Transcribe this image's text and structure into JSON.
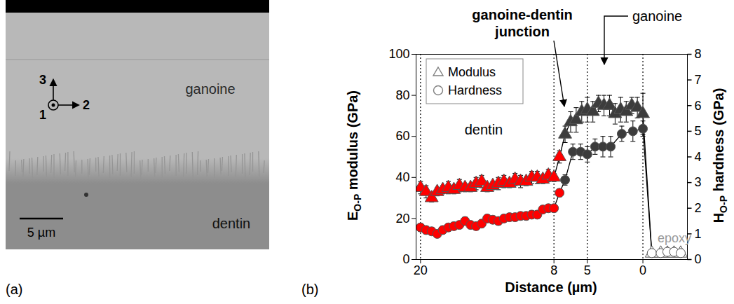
{
  "panel_a": {
    "letter": "(a)",
    "labels": [
      "ganoine",
      "dentin"
    ],
    "scale_bar": "5 µm",
    "axes": [
      "1",
      "2",
      "3"
    ]
  },
  "chart_data": {
    "letter": "(b)",
    "type": "scatter",
    "xlabel": "Distance (µm)",
    "ylabel": {
      "text": "E",
      "subscript": "O-P",
      "rest": " modulus (GPa)"
    },
    "y2label": {
      "text": "H",
      "subscript": "O-P",
      "rest": " hardness (GPa)"
    },
    "xlim": [
      20.4,
      -4
    ],
    "xticks": [
      20,
      8,
      5,
      0
    ],
    "ylim": [
      0,
      100
    ],
    "yticks": [
      0,
      20,
      40,
      60,
      80,
      100
    ],
    "y2lim": [
      0,
      8
    ],
    "y2ticks": [
      0,
      1,
      2,
      3,
      4,
      5,
      6,
      7,
      8
    ],
    "grid": "x",
    "legend": "top-left",
    "annotations": [
      "ganoine-dentin junction",
      "ganoine",
      "dentin",
      "epoxy"
    ],
    "series": [
      {
        "name": "Modulus",
        "marker": "triangle",
        "line_style": "solid",
        "x": [
          20,
          19.5,
          19,
          18.5,
          18,
          17.5,
          17,
          16.5,
          16,
          15.5,
          15,
          14.5,
          14,
          13.5,
          13,
          12.5,
          12,
          11.5,
          11,
          10.5,
          10,
          9.5,
          9,
          8.5,
          8,
          7.5,
          7,
          6.5,
          6,
          5.5,
          5,
          4.5,
          4,
          3.5,
          3,
          2.5,
          2,
          1.5,
          1,
          0.5,
          0,
          -0.8,
          -1.6,
          -2.2,
          -2.8,
          -3.4
        ],
        "values": [
          35,
          33,
          30,
          33,
          34,
          35,
          34,
          36,
          35,
          35,
          37,
          38,
          35,
          36,
          37,
          38,
          37,
          39,
          38,
          38,
          40,
          40,
          39,
          41,
          40,
          50,
          61,
          67,
          68,
          72,
          73,
          72,
          76,
          75,
          75,
          71,
          73,
          72,
          75,
          74,
          71,
          3,
          3,
          3,
          3,
          3
        ],
        "errors": [
          3,
          3,
          2,
          2,
          2,
          3,
          2,
          3,
          2,
          2,
          3,
          3,
          2,
          2,
          3,
          3,
          2,
          3,
          3,
          2,
          3,
          3,
          2,
          3,
          2,
          3,
          4,
          5,
          6,
          5,
          6,
          5,
          4,
          5,
          5,
          5,
          6,
          5,
          4,
          5,
          10,
          0.5,
          0.5,
          0.5,
          0.5,
          0.5
        ],
        "colors": [
          "#ff0000",
          "#ff0000",
          "#ff0000",
          "#ff0000",
          "#ff0000",
          "#ff0000",
          "#ff0000",
          "#ff0000",
          "#ff0000",
          "#ff0000",
          "#ff0000",
          "#ff0000",
          "#ff0000",
          "#ff0000",
          "#ff0000",
          "#ff0000",
          "#ff0000",
          "#ff0000",
          "#ff0000",
          "#ff0000",
          "#ff0000",
          "#ff0000",
          "#ff0000",
          "#ff0000",
          "#ff0000",
          "#ff0000",
          "#3c3c3c",
          "#3c3c3c",
          "#3c3c3c",
          "#3c3c3c",
          "#3c3c3c",
          "#3c3c3c",
          "#3c3c3c",
          "#3c3c3c",
          "#3c3c3c",
          "#3c3c3c",
          "#3c3c3c",
          "#3c3c3c",
          "#3c3c3c",
          "#3c3c3c",
          "#3c3c3c",
          "#ffffff",
          "#ffffff",
          "#ffffff",
          "#ffffff",
          "#ffffff"
        ]
      },
      {
        "name": "Hardness",
        "marker": "circle",
        "line_style": "solid",
        "axis": "y2",
        "x": [
          20,
          19.5,
          19,
          18.5,
          18,
          17.5,
          17,
          16.5,
          16,
          15.5,
          15,
          14.5,
          14,
          13.5,
          13,
          12.5,
          12,
          11.5,
          11,
          10.5,
          10,
          9.5,
          9,
          8.5,
          8,
          7.5,
          7,
          6.3,
          5.6,
          5,
          4.3,
          3.6,
          2.9,
          1.9,
          0.9,
          0,
          -0.8,
          -1.6,
          -2.2,
          -2.8,
          -3.4
        ],
        "values": [
          1.25,
          1.15,
          1.1,
          1.0,
          1.15,
          1.25,
          1.3,
          1.35,
          1.5,
          1.35,
          1.3,
          1.4,
          1.6,
          1.55,
          1.5,
          1.6,
          1.65,
          1.65,
          1.7,
          1.7,
          1.75,
          1.75,
          1.95,
          2.0,
          2.0,
          2.6,
          3.1,
          4.2,
          4.2,
          4.1,
          4.4,
          4.4,
          4.4,
          4.9,
          5.0,
          5.1,
          0.25,
          0.25,
          0.3,
          0.3,
          0.25
        ],
        "errors": [
          0.15,
          0.15,
          0.15,
          0.15,
          0.15,
          0.15,
          0.15,
          0.15,
          0.15,
          0.15,
          0.15,
          0.15,
          0.15,
          0.15,
          0.15,
          0.15,
          0.15,
          0.15,
          0.15,
          0.15,
          0.15,
          0.15,
          0.15,
          0.15,
          0.15,
          0.15,
          0.2,
          0.3,
          0.3,
          0.3,
          0.3,
          0.4,
          0.4,
          0.3,
          0.4,
          0.3,
          0.05,
          0.05,
          0.05,
          0.05,
          0.05
        ],
        "colors": [
          "#ff0000",
          "#ff0000",
          "#ff0000",
          "#ff0000",
          "#ff0000",
          "#ff0000",
          "#ff0000",
          "#ff0000",
          "#ff0000",
          "#ff0000",
          "#ff0000",
          "#ff0000",
          "#ff0000",
          "#ff0000",
          "#ff0000",
          "#ff0000",
          "#ff0000",
          "#ff0000",
          "#ff0000",
          "#ff0000",
          "#ff0000",
          "#ff0000",
          "#ff0000",
          "#ff0000",
          "#ff0000",
          "#ff0000",
          "#3c3c3c",
          "#3c3c3c",
          "#3c3c3c",
          "#3c3c3c",
          "#3c3c3c",
          "#3c3c3c",
          "#3c3c3c",
          "#3c3c3c",
          "#3c3c3c",
          "#3c3c3c",
          "#ffffff",
          "#ffffff",
          "#ffffff",
          "#ffffff",
          "#ffffff"
        ]
      }
    ]
  }
}
